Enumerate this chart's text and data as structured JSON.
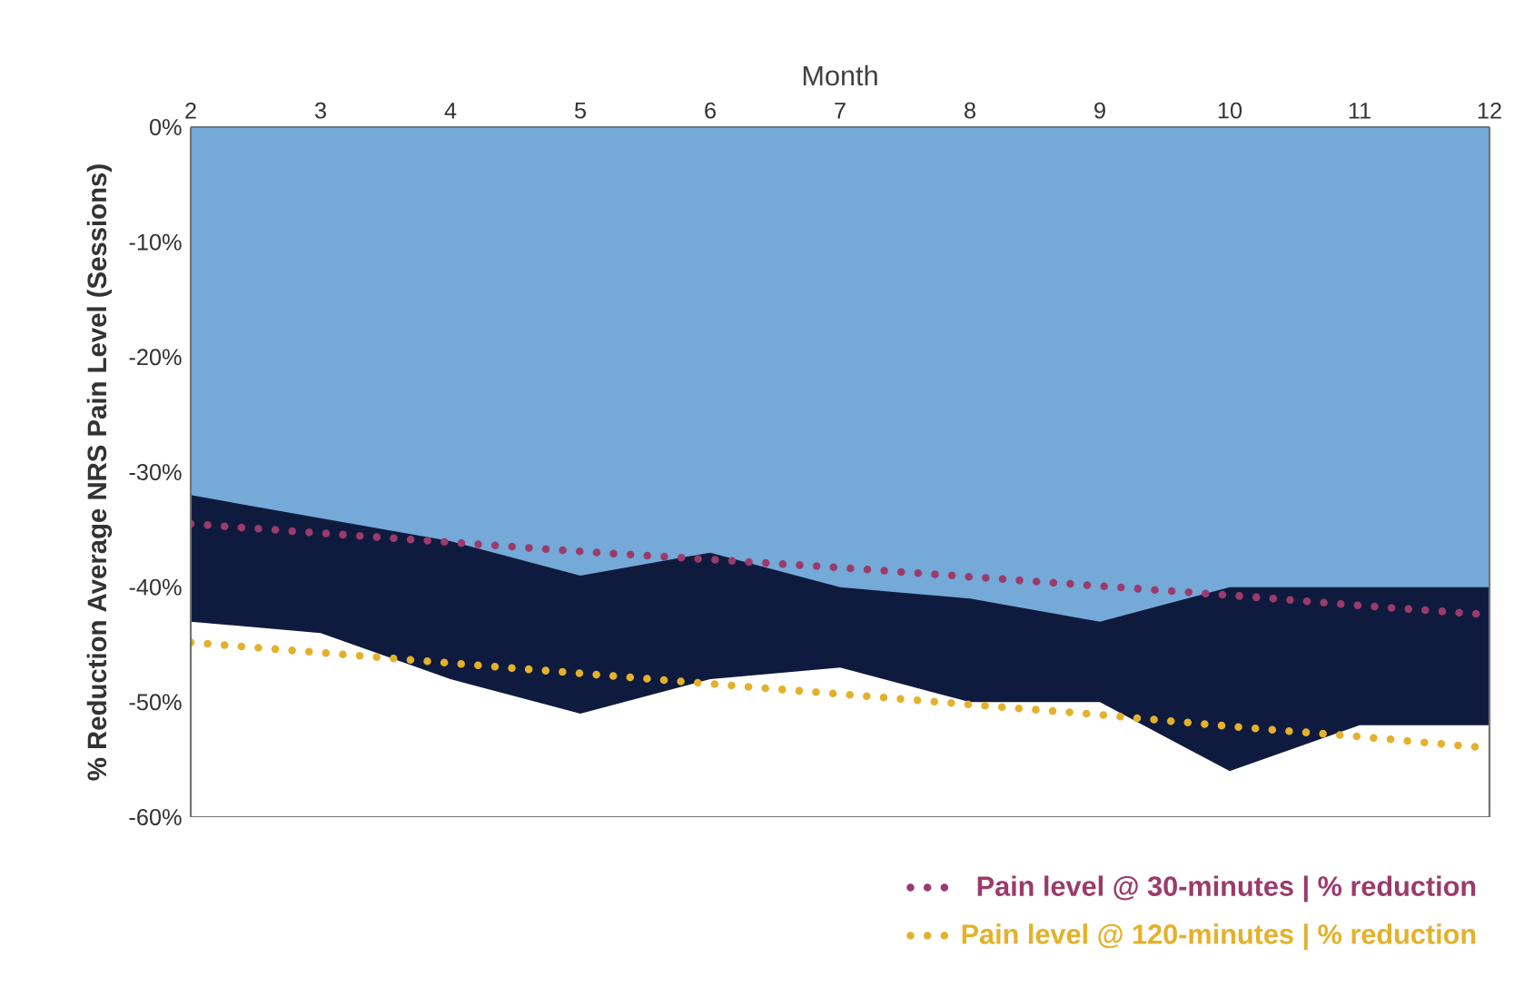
{
  "chart_data": {
    "type": "area",
    "xlabel": "Month",
    "ylabel": "% Reduction Average NRS Pain Level (Sessions)",
    "x": [
      2,
      3,
      4,
      5,
      6,
      7,
      8,
      9,
      10,
      11,
      12
    ],
    "xlim": [
      2,
      12
    ],
    "xticks": [
      2,
      3,
      4,
      5,
      6,
      7,
      8,
      9,
      10,
      11,
      12
    ],
    "ylim": [
      -60,
      0
    ],
    "yticks": [
      {
        "value": 0,
        "label": "0%"
      },
      {
        "value": -10,
        "label": "-10%"
      },
      {
        "value": -20,
        "label": "-20%"
      },
      {
        "value": -30,
        "label": "-30%"
      },
      {
        "value": -40,
        "label": "-40%"
      },
      {
        "value": -50,
        "label": "-50%"
      },
      {
        "value": -60,
        "label": "-60%"
      }
    ],
    "series": [
      {
        "color": "#0f1b3e",
        "values": [
          -43,
          -44,
          -48,
          -51,
          -48,
          -47,
          -50,
          -50,
          -56,
          -52,
          -52
        ]
      },
      {
        "color": "#74a9d8",
        "values": [
          -32,
          -34,
          -36,
          -39,
          -37,
          -40,
          -41,
          -43,
          -40,
          -40,
          -40
        ]
      },
      {
        "type": "line",
        "name": "Pain level @ 30-minutes | % reduction",
        "color": "#9b3b6b",
        "line_style": "dotted",
        "values": [
          -34.5,
          -35.3,
          -36.1,
          -36.9,
          -37.6,
          -38.3,
          -39.1,
          -39.9,
          -40.7,
          -41.6,
          -42.4
        ]
      },
      {
        "type": "line",
        "name": "Pain level @ 120-minutes | % reduction",
        "color": "#e3b12b",
        "line_style": "dotted",
        "values": [
          -44.8,
          -45.7,
          -46.6,
          -47.5,
          -48.4,
          -49.3,
          -50.2,
          -51.1,
          -52.1,
          -53.0,
          -54.0
        ]
      }
    ],
    "grid": false,
    "legend": "bottom right"
  }
}
